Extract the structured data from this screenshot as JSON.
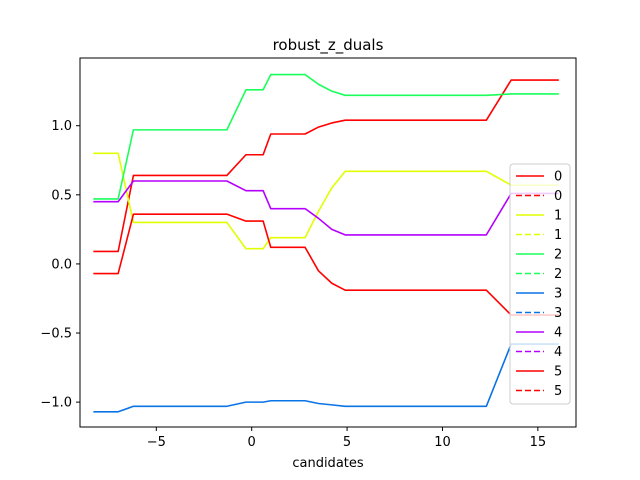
{
  "chart_data": {
    "type": "line",
    "title": "robust_z_duals",
    "xlabel": "candidates",
    "ylabel": "",
    "xlim": [
      -9.0,
      17.0
    ],
    "ylim": [
      -1.18,
      1.49
    ],
    "xticks": [
      -5,
      0,
      5,
      10,
      15
    ],
    "xtick_labels": [
      "−5",
      "0",
      "5",
      "10",
      "15"
    ],
    "yticks": [
      -1.0,
      -0.5,
      0.0,
      0.5,
      1.0
    ],
    "ytick_labels": [
      "−1.0",
      "−0.5",
      "0.0",
      "0.5",
      "1.0"
    ],
    "grid": false,
    "legend_position": "right",
    "series": [
      {
        "name": "0",
        "color": "#ff0000",
        "dash": "solid",
        "x": [
          -8.3,
          -7.0,
          -6.2,
          -1.3,
          -0.3,
          0.6,
          1.0,
          2.8,
          3.5,
          4.2,
          4.9,
          12.3,
          13.6,
          16.1
        ],
        "y": [
          0.09,
          0.09,
          0.64,
          0.64,
          0.79,
          0.79,
          0.94,
          0.94,
          0.99,
          1.02,
          1.04,
          1.04,
          1.33,
          1.33
        ]
      },
      {
        "name": "0",
        "color": "#ff0000",
        "dash": "dashed",
        "x": [],
        "y": []
      },
      {
        "name": "1",
        "color": "#e0ff00",
        "dash": "solid",
        "x": [
          -8.3,
          -7.0,
          -6.2,
          -1.3,
          -0.3,
          0.6,
          1.0,
          2.8,
          3.5,
          4.2,
          4.9,
          12.3,
          13.6,
          16.1
        ],
        "y": [
          0.8,
          0.8,
          0.3,
          0.3,
          0.11,
          0.11,
          0.19,
          0.19,
          0.38,
          0.55,
          0.67,
          0.67,
          0.57,
          0.57
        ]
      },
      {
        "name": "1",
        "color": "#e0ff00",
        "dash": "dashed",
        "x": [],
        "y": []
      },
      {
        "name": "2",
        "color": "#1aff5a",
        "dash": "solid",
        "x": [
          -8.3,
          -7.0,
          -6.2,
          -1.3,
          -0.3,
          0.6,
          1.0,
          2.8,
          3.5,
          4.2,
          4.9,
          12.3,
          13.6,
          16.1
        ],
        "y": [
          0.47,
          0.47,
          0.97,
          0.97,
          1.26,
          1.26,
          1.37,
          1.37,
          1.3,
          1.25,
          1.22,
          1.22,
          1.23,
          1.23
        ]
      },
      {
        "name": "2",
        "color": "#1aff5a",
        "dash": "dashed",
        "x": [],
        "y": []
      },
      {
        "name": "3",
        "color": "#0a73e6",
        "dash": "solid",
        "x": [
          -8.3,
          -7.0,
          -6.2,
          -1.3,
          -0.3,
          0.6,
          1.0,
          2.8,
          3.5,
          4.2,
          4.9,
          12.3,
          13.6,
          16.1
        ],
        "y": [
          -1.07,
          -1.07,
          -1.03,
          -1.03,
          -1.0,
          -1.0,
          -0.99,
          -0.99,
          -1.01,
          -1.02,
          -1.03,
          -1.03,
          -0.58,
          -0.58
        ]
      },
      {
        "name": "3",
        "color": "#0a73e6",
        "dash": "dashed",
        "x": [],
        "y": []
      },
      {
        "name": "4",
        "color": "#b400ff",
        "dash": "solid",
        "x": [
          -8.3,
          -7.0,
          -6.2,
          -1.3,
          -0.3,
          0.6,
          1.0,
          2.8,
          3.5,
          4.2,
          4.9,
          12.3,
          13.6,
          16.1
        ],
        "y": [
          0.45,
          0.45,
          0.6,
          0.6,
          0.53,
          0.53,
          0.4,
          0.4,
          0.33,
          0.25,
          0.21,
          0.21,
          0.51,
          0.51
        ]
      },
      {
        "name": "4",
        "color": "#b400ff",
        "dash": "dashed",
        "x": [],
        "y": []
      },
      {
        "name": "5",
        "color": "#ff0000",
        "dash": "solid",
        "x": [
          -8.3,
          -7.0,
          -6.2,
          -1.3,
          -0.3,
          0.6,
          1.0,
          2.8,
          3.5,
          4.2,
          4.9,
          12.3,
          13.6,
          16.1
        ],
        "y": [
          -0.07,
          -0.07,
          0.36,
          0.36,
          0.31,
          0.31,
          0.12,
          0.12,
          -0.05,
          -0.14,
          -0.19,
          -0.19,
          -0.37,
          -0.37
        ]
      },
      {
        "name": "5",
        "color": "#ff0000",
        "dash": "dashed",
        "x": [],
        "y": []
      }
    ]
  }
}
